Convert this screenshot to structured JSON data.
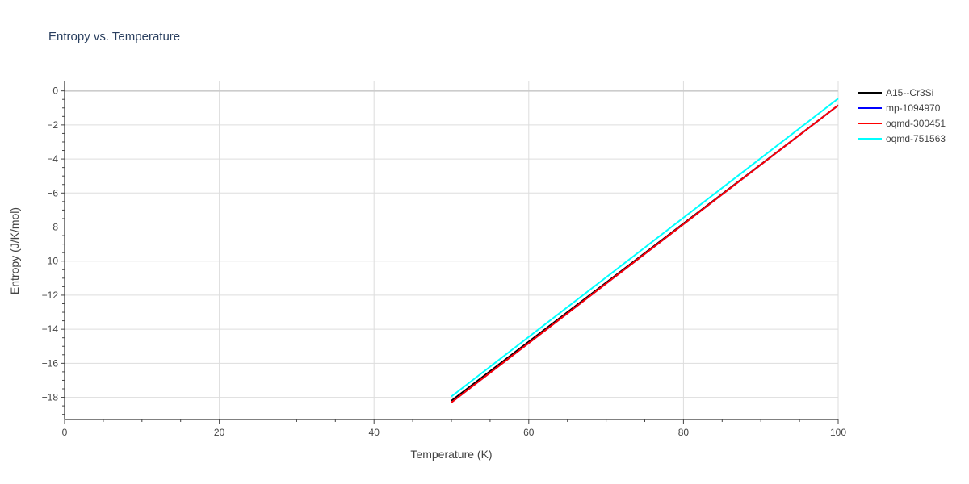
{
  "chart_data": {
    "type": "line",
    "title": "Entropy vs. Temperature",
    "xlabel": "Temperature (K)",
    "ylabel": "Entropy (J/K/mol)",
    "xlim": [
      0,
      100
    ],
    "ylim": [
      -19.3,
      0.6
    ],
    "x_ticks": [
      0,
      20,
      40,
      60,
      80,
      100
    ],
    "y_ticks": [
      0,
      -2,
      -4,
      -6,
      -8,
      -10,
      -12,
      -14,
      -16,
      -18
    ],
    "x_tick_labels": [
      "0",
      "20",
      "40",
      "60",
      "80",
      "100"
    ],
    "y_tick_labels": [
      "0",
      "−2",
      "−4",
      "−6",
      "−8",
      "−10",
      "−12",
      "−14",
      "−16",
      "−18"
    ],
    "grid": true,
    "legend_position": "top-right",
    "series": [
      {
        "name": "A15--Cr3Si",
        "color": "#000000",
        "x": [
          50,
          100
        ],
        "y": [
          -18.2,
          -0.85
        ]
      },
      {
        "name": "mp-1094970",
        "color": "#0000ff",
        "x": [
          50,
          100
        ],
        "y": [
          -18.3,
          -0.85
        ]
      },
      {
        "name": "oqmd-300451",
        "color": "#ff0000",
        "x": [
          50,
          100
        ],
        "y": [
          -18.3,
          -0.85
        ]
      },
      {
        "name": "oqmd-751563",
        "color": "#00ffff",
        "x": [
          50,
          100
        ],
        "y": [
          -17.95,
          -0.45
        ]
      }
    ]
  }
}
